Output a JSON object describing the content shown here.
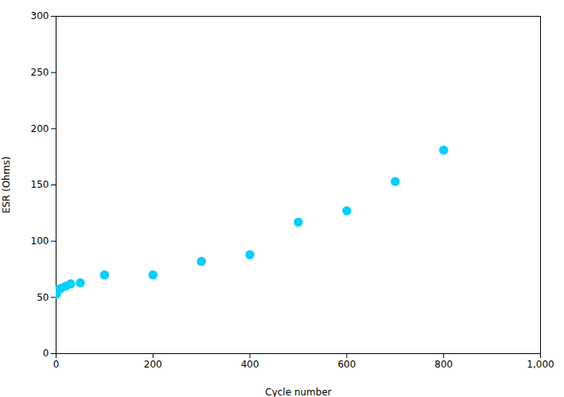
{
  "chart_data": {
    "type": "scatter",
    "x": [
      1,
      5,
      10,
      20,
      30,
      50,
      100,
      200,
      300,
      400,
      500,
      600,
      700,
      800
    ],
    "y": [
      53,
      57,
      58,
      60,
      62,
      63,
      70,
      70,
      82,
      88,
      117,
      127,
      153,
      181
    ],
    "color": "#00CFFF",
    "marker": "circle",
    "xlabel": "Cycle number",
    "ylabel": "ESR (Ohms)",
    "xlim": [
      0,
      1000
    ],
    "ylim": [
      0,
      300
    ],
    "xticks": [
      0,
      200,
      400,
      600,
      800,
      1000
    ],
    "yticks": [
      0,
      50,
      100,
      150,
      200,
      250,
      300
    ],
    "grid": false
  }
}
